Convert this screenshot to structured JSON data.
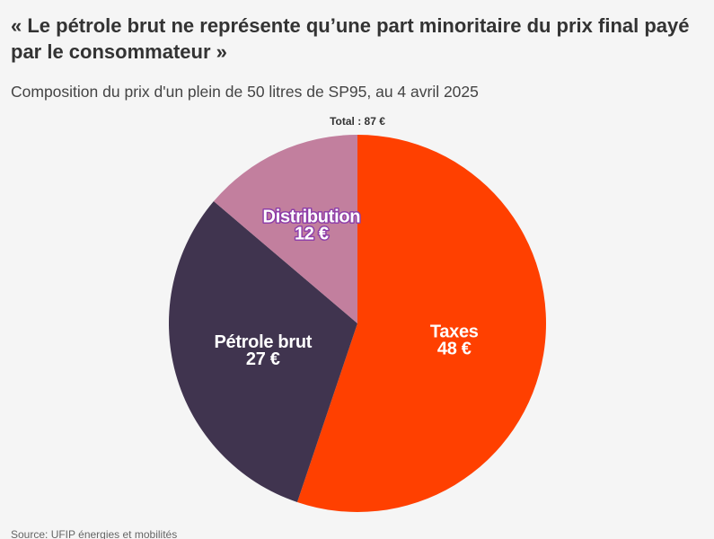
{
  "title": "« Le pétrole brut ne représente qu’une part minoritaire du prix final payé par le consommateur »",
  "subtitle": "Composition du prix d'un plein de 50 litres de SP95, au 4 avril 2025",
  "source": "Source: UFIP énergies et mobilités",
  "chart_data": {
    "type": "pie",
    "total_label": "Total : 87 €",
    "categories": [
      "Taxes",
      "Pétrole brut",
      "Distribution"
    ],
    "values": [
      48,
      27,
      12
    ],
    "value_labels": [
      "48 €",
      "27 €",
      "12 €"
    ],
    "colors": [
      "#ff4000",
      "#40344f",
      "#c27f9e"
    ],
    "start": "top",
    "direction": "clockwise"
  }
}
